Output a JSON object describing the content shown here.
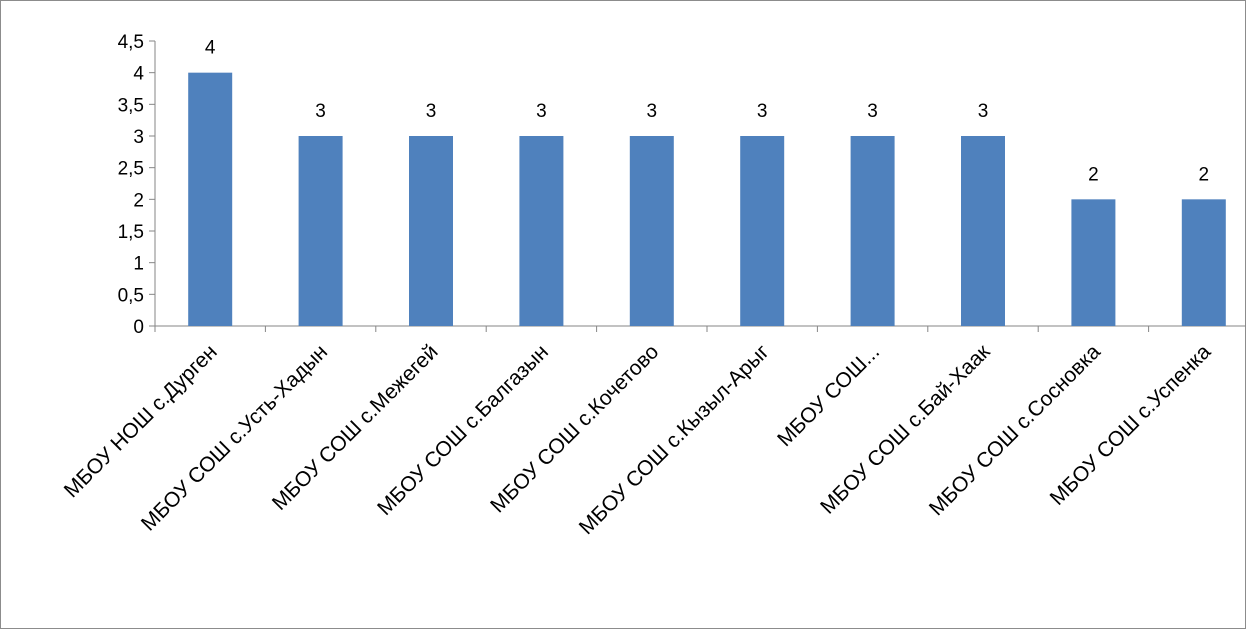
{
  "chart_data": {
    "type": "bar",
    "categories": [
      "МБОУ НОШ с.Дурген",
      "МБОУ СОШ с.Усть-Хадын",
      "МБОУ СОШ с.Межегей",
      "МБОУ СОШ с.Балгазын",
      "МБОУ СОШ с.Кочетово",
      "МБОУ СОШ с.Кызыл-Арыг",
      "МБОУ СОШ...",
      "МБОУ СОШ с.Бай-Хаак",
      "МБОУ СОШ с.Сосновка",
      "МБОУ СОШ с.Успенка"
    ],
    "values": [
      4,
      3,
      3,
      3,
      3,
      3,
      3,
      3,
      2,
      2
    ],
    "data_labels": [
      "4",
      "3",
      "3",
      "3",
      "3",
      "3",
      "3",
      "3",
      "2",
      "2"
    ],
    "y_ticks": [
      "0",
      "0,5",
      "1",
      "1,5",
      "2",
      "2,5",
      "3",
      "3,5",
      "4",
      "4,5"
    ],
    "ylim": [
      0,
      4.5
    ],
    "title": "",
    "xlabel": "",
    "ylabel": "",
    "grid": false,
    "legend": "none",
    "bar_color": "#4f81bd",
    "axis_color": "#868686"
  }
}
